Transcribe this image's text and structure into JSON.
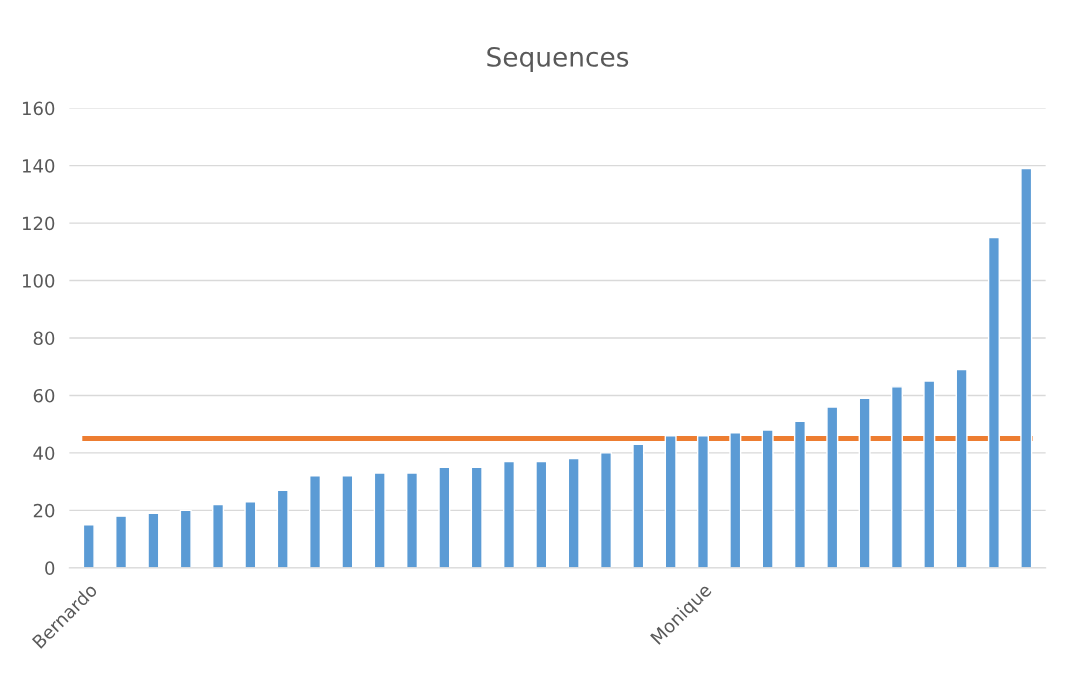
{
  "chart_data": {
    "type": "bar",
    "title": "Sequences",
    "categories": [
      "Bernardo",
      null,
      null,
      null,
      null,
      null,
      null,
      null,
      null,
      null,
      null,
      null,
      null,
      null,
      null,
      null,
      null,
      null,
      null,
      "Monique",
      null,
      null,
      null,
      null,
      null,
      null,
      null,
      null,
      null,
      null
    ],
    "values": [
      15,
      18,
      19,
      20,
      22,
      23,
      27,
      32,
      32,
      33,
      33,
      35,
      35,
      37,
      37,
      38,
      40,
      43,
      46,
      46,
      47,
      48,
      51,
      56,
      59,
      63,
      65,
      69,
      115,
      139
    ],
    "color": "#5b9bd5",
    "ylim": [
      0,
      160
    ],
    "yticks": [
      0,
      20,
      40,
      60,
      80,
      100,
      120,
      140,
      160
    ],
    "grid": "y",
    "ref_lines": [
      {
        "axis": "y",
        "value": 45,
        "color": "#ed7d31",
        "line_style": "solid"
      }
    ]
  }
}
